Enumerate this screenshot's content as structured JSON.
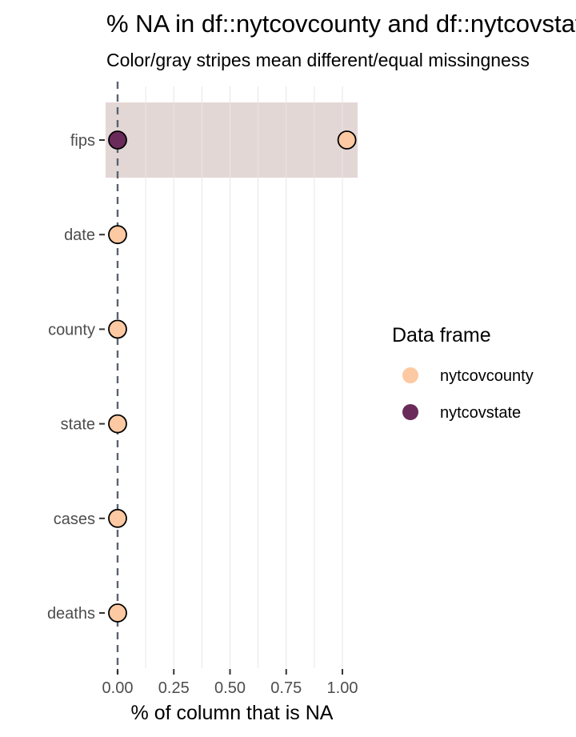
{
  "chart_data": {
    "type": "scatter",
    "title": "% NA in df::nytcovcounty and df::nytcovstate",
    "subtitle": "Color/gray stripes mean different/equal missingness",
    "xlabel": "% of column that is NA",
    "ylabel": "",
    "xlim": [
      -0.05,
      1.07
    ],
    "x_ticks": [
      "0.00",
      "0.25",
      "0.50",
      "0.75",
      "1.00"
    ],
    "x_tick_values": [
      0,
      0.25,
      0.5,
      0.75,
      1.0
    ],
    "categories": [
      "fips",
      "date",
      "county",
      "state",
      "cases",
      "deaths"
    ],
    "reference_line_x": 0,
    "stripes": [
      {
        "category": "fips",
        "kind": "different",
        "color": "#e3d7d5"
      }
    ],
    "series": [
      {
        "name": "nytcovcounty",
        "color": "#fdc9a2",
        "values": [
          1.02,
          0,
          0,
          0,
          0,
          0
        ]
      },
      {
        "name": "nytcovstate",
        "color": "#6a2b5b",
        "values": [
          0,
          null,
          null,
          null,
          null,
          null
        ]
      }
    ],
    "legend": {
      "title": "Data frame",
      "position": "right"
    }
  }
}
